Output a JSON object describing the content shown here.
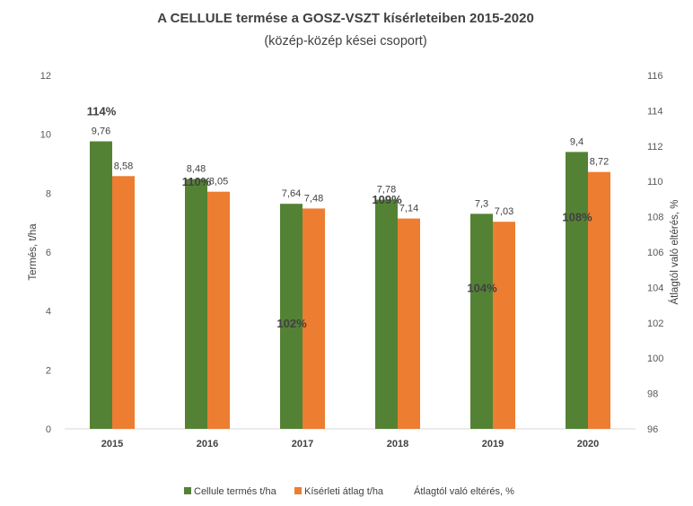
{
  "chart_data": {
    "type": "bar",
    "title": "A CELLULE termése a GOSZ-VSZT kísérleteiben 2015-2020",
    "subtitle": "(közép-közép kései csoport)",
    "categories": [
      "2015",
      "2016",
      "2017",
      "2018",
      "2019",
      "2020"
    ],
    "series": [
      {
        "name": "Cellule termés t/ha",
        "color": "#548235",
        "values": [
          9.76,
          8.48,
          7.64,
          7.78,
          7.3,
          9.4
        ],
        "labels": [
          "9,76",
          "8,48",
          "7,64",
          "7,78",
          "7,3",
          "9,4"
        ]
      },
      {
        "name": "Kísérleti átlag t/ha",
        "color": "#ED7D31",
        "values": [
          8.58,
          8.05,
          7.48,
          7.14,
          7.03,
          8.72
        ],
        "labels": [
          "8,58",
          "8,05",
          "7,48",
          "7,14",
          "7,03",
          "8,72"
        ]
      },
      {
        "name": "Átlagtól való eltérés, %",
        "axis": "right",
        "values": [
          114,
          110,
          102,
          109,
          104,
          108
        ],
        "labels": [
          "114%",
          "110%",
          "102%",
          "109%",
          "104%",
          "108%"
        ]
      }
    ],
    "ylabel": "Termés, t/ha",
    "y2label": "Átlagtól való eltérés, %",
    "ylim": [
      0,
      12
    ],
    "y2lim": [
      96,
      116
    ],
    "yticks": [
      "0",
      "2",
      "4",
      "6",
      "8",
      "10",
      "12"
    ],
    "y2ticks": [
      "96",
      "98",
      "100",
      "102",
      "104",
      "106",
      "108",
      "110",
      "112",
      "114",
      "116"
    ],
    "grid": false,
    "legend": "bottom"
  }
}
